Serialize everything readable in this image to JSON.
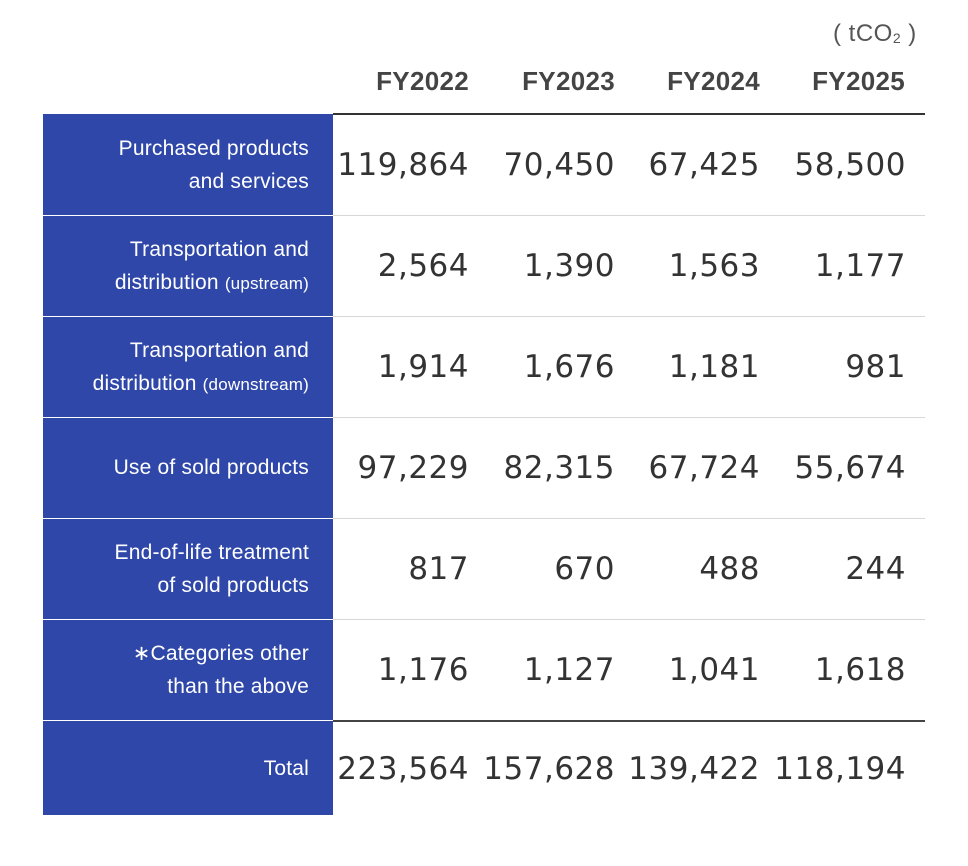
{
  "unit": {
    "open": "( tCO",
    "sub": "2",
    "close": " )"
  },
  "columns": [
    "FY2022",
    "FY2023",
    "FY2024",
    "FY2025"
  ],
  "rows": [
    {
      "label": "Purchased products\nand services",
      "label_small": "",
      "values": [
        "119,864",
        "70,450",
        "67,425",
        "58,500"
      ]
    },
    {
      "label": "Transportation and\ndistribution ",
      "label_small": "(upstream)",
      "values": [
        "2,564",
        "1,390",
        "1,563",
        "1,177"
      ]
    },
    {
      "label": "Transportation and\ndistribution ",
      "label_small": "(downstream)",
      "values": [
        "1,914",
        "1,676",
        "1,181",
        "981"
      ]
    },
    {
      "label": "Use of sold products",
      "label_small": "",
      "values": [
        "97,229",
        "82,315",
        "67,724",
        "55,674"
      ]
    },
    {
      "label": "End-of-life treatment\nof sold products",
      "label_small": "",
      "values": [
        "817",
        "670",
        "488",
        "244"
      ]
    },
    {
      "label": "∗Categories other\nthan the above",
      "label_small": "",
      "values": [
        "1,176",
        "1,127",
        "1,041",
        "1,618"
      ]
    }
  ],
  "total": {
    "label": "Total",
    "values": [
      "223,564",
      "157,628",
      "139,422",
      "118,194"
    ]
  },
  "colors": {
    "label_bg": "#2f47a8",
    "label_text": "#ffffff",
    "value_text": "#333333"
  }
}
